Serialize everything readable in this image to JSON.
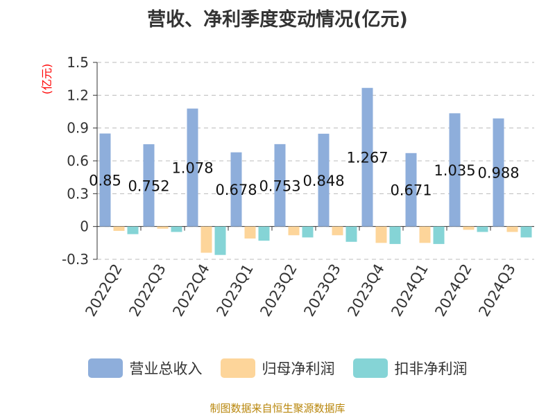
{
  "chart_data": {
    "type": "bar",
    "title": "营收、净利季度变动情况(亿元)",
    "unit": "(亿元)",
    "categories": [
      "2022Q2",
      "2022Q3",
      "2022Q4",
      "2023Q1",
      "2023Q2",
      "2023Q3",
      "2023Q4",
      "2024Q1",
      "2024Q2",
      "2024Q3"
    ],
    "series": [
      {
        "name": "营业总收入",
        "color": "#8eaedb",
        "values": [
          0.85,
          0.752,
          1.078,
          0.678,
          0.753,
          0.848,
          1.267,
          0.671,
          1.035,
          0.988
        ],
        "labels": [
          "0.85",
          "0.752",
          "1.078",
          "0.678",
          "0.753",
          "0.848",
          "1.267",
          "0.671",
          "1.035",
          "0.988"
        ]
      },
      {
        "name": "归母净利润",
        "color": "#fdd59a",
        "values": [
          -0.04,
          -0.02,
          -0.24,
          -0.11,
          -0.08,
          -0.08,
          -0.15,
          -0.15,
          -0.03,
          -0.05
        ]
      },
      {
        "name": "扣非净利润",
        "color": "#85d4d6",
        "values": [
          -0.07,
          -0.05,
          -0.26,
          -0.13,
          -0.1,
          -0.14,
          -0.16,
          -0.16,
          -0.05,
          -0.1
        ]
      }
    ],
    "ylim": [
      -0.3,
      1.5
    ],
    "yticks": [
      "1.5",
      "1.2",
      "0.9",
      "0.6",
      "0.3",
      "0",
      "-0.3"
    ],
    "grid": true,
    "legend": "bottom"
  },
  "source_note": "制图数据来自恒生聚源数据库"
}
